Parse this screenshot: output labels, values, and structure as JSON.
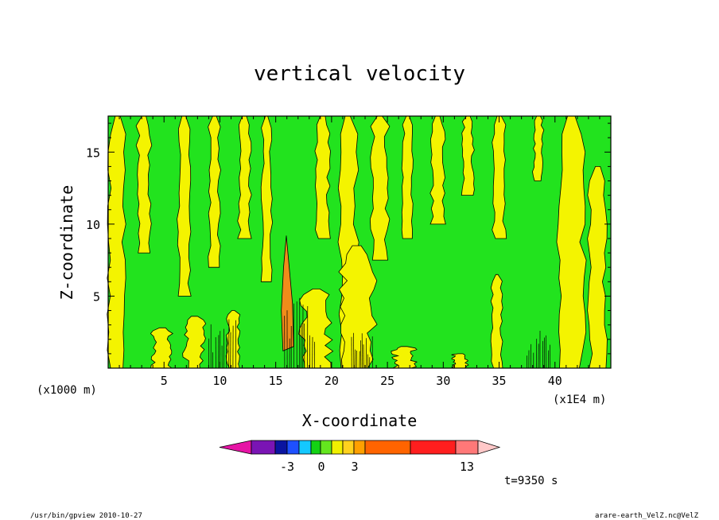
{
  "chart_data": {
    "type": "heatmap",
    "title": "vertical velocity",
    "xlabel": "X-coordinate",
    "ylabel": "Z-coordinate",
    "x_unit": "(x1E4 m)",
    "y_unit": "(x1000 m)",
    "xlim": [
      0,
      45
    ],
    "ylim": [
      0,
      17.5
    ],
    "x_ticks": [
      "5",
      "10",
      "15",
      "20",
      "25",
      "30",
      "35",
      "40"
    ],
    "y_ticks": [
      "5",
      "10",
      "15"
    ],
    "time_label": "t=9350 s",
    "colorbar": {
      "tick_labels": [
        "-3",
        "0",
        "3",
        "13"
      ],
      "colors": [
        "#e614a5",
        "#7a14b4",
        "#0a14a0",
        "#1e50ff",
        "#14c8ff",
        "#14d214",
        "#64e61e",
        "#f0f000",
        "#ffd21e",
        "#ffa000",
        "#ff6400",
        "#ff1e1e",
        "#ff7878",
        "#ffc8c8"
      ]
    },
    "regions": {
      "background_color": "#22e31e",
      "positive_color": "#f4f400",
      "strong_positive_color": "#f08c1a",
      "updraft_core_x": 16,
      "updraft_core_z_top": 9.2
    }
  },
  "footer": {
    "left": "/usr/bin/gpview   2010-10-27",
    "right": "arare-earth_VelZ.nc@VelZ"
  }
}
